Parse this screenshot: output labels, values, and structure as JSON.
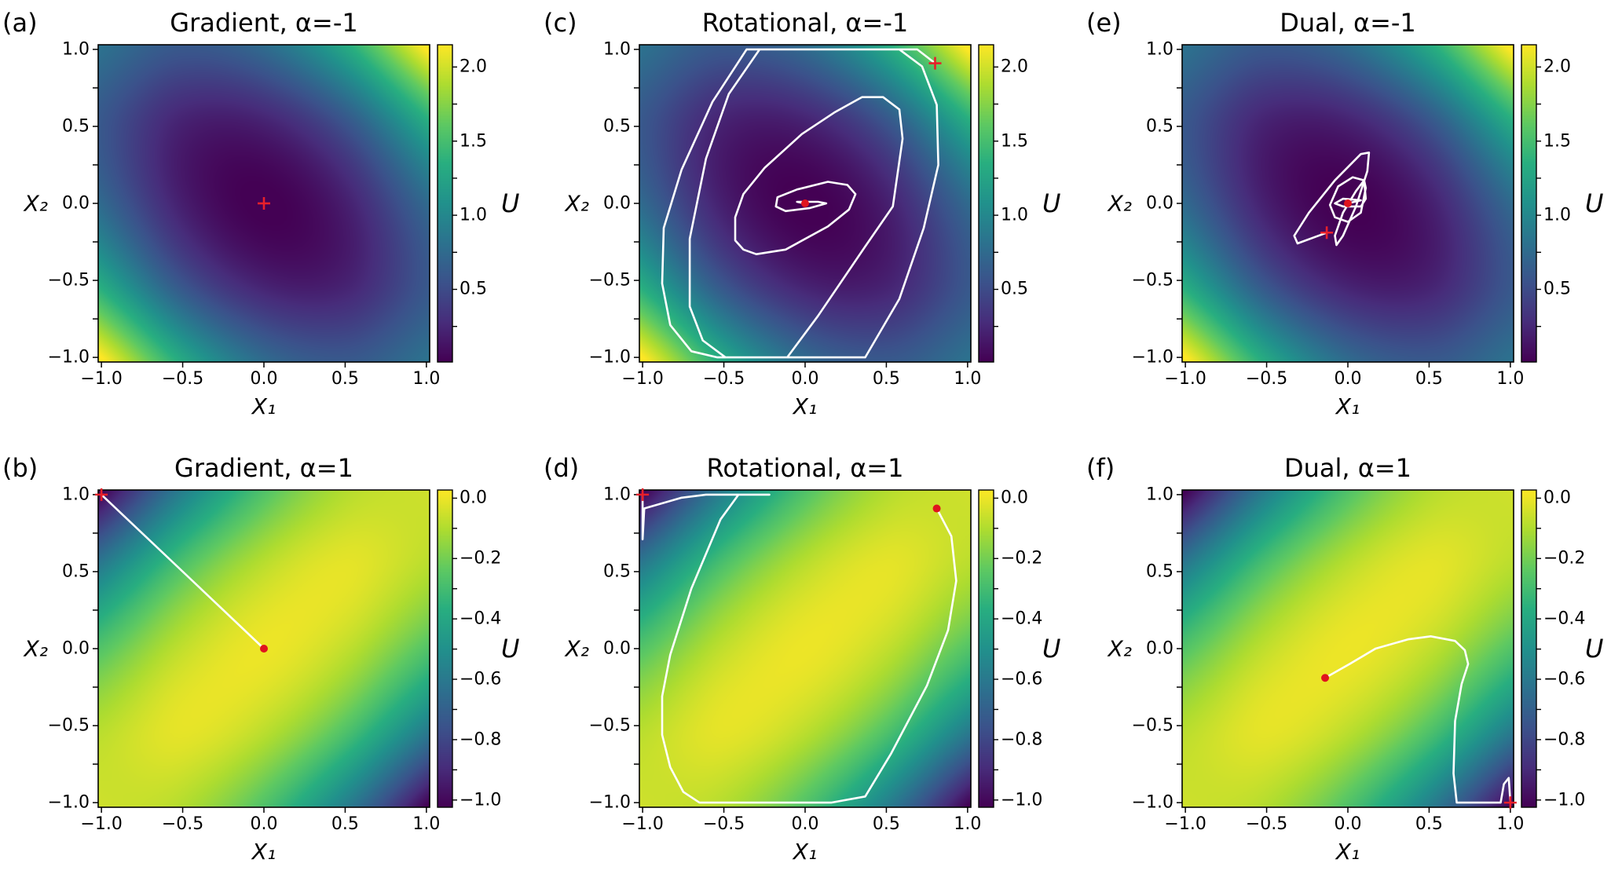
{
  "chart_data": [
    {
      "type": "heatmap",
      "panel_label": "(a)",
      "title": "Gradient, α=-1",
      "xlabel": "X₁",
      "ylabel": "X₂",
      "colorbar_label": "U",
      "colormap": "viridis",
      "xlim": [
        -1.02,
        1.02
      ],
      "ylim": [
        -1.03,
        1.03
      ],
      "xticks": [
        -1,
        -0.5,
        0,
        0.5,
        1
      ],
      "xtick_labels": [
        "−1.0",
        "−0.5",
        "0.0",
        "0.5",
        "1.0"
      ],
      "yticks": [
        -1,
        -0.5,
        0,
        0.5,
        1
      ],
      "ytick_labels": [
        "−1.0",
        "−0.5",
        "0.0",
        "0.5",
        "1.0"
      ],
      "clim": [
        0.01,
        2.15
      ],
      "colorbar_ticks": [
        0.5,
        1.0,
        1.5,
        2.0
      ],
      "colorbar_tick_labels": [
        "0.5",
        "1.0",
        "1.5",
        "2.0"
      ],
      "z_grid_x": [
        -1,
        -0.5,
        0,
        0.5,
        1
      ],
      "z_grid_y": [
        1,
        0.5,
        0,
        -0.5,
        -1
      ],
      "z_grid": [
        [
          0.8,
          0.59,
          0.74,
          1.27,
          2.16
        ],
        [
          0.59,
          0.2,
          0.19,
          0.54,
          1.27
        ],
        [
          0.74,
          0.19,
          0.0,
          0.19,
          0.74
        ],
        [
          1.27,
          0.54,
          0.19,
          0.2,
          0.59
        ],
        [
          2.16,
          1.27,
          0.74,
          0.59,
          0.8
        ]
      ],
      "trajectory": [],
      "start": [
        0,
        0
      ],
      "end": null
    },
    {
      "type": "heatmap",
      "panel_label": "(b)",
      "title": "Gradient, α=1",
      "xlabel": "X₁",
      "ylabel": "X₂",
      "colorbar_label": "U",
      "colormap": "viridis",
      "xlim": [
        -1.02,
        1.02
      ],
      "ylim": [
        -1.03,
        1.03
      ],
      "xticks": [
        -1,
        -0.5,
        0,
        0.5,
        1
      ],
      "xtick_labels": [
        "−1.0",
        "−0.5",
        "0.0",
        "0.5",
        "1.0"
      ],
      "yticks": [
        -1,
        -0.5,
        0,
        0.5,
        1
      ],
      "ytick_labels": [
        "−1.0",
        "−0.5",
        "0.0",
        "0.5",
        "1.0"
      ],
      "clim": [
        -1.024,
        0.027
      ],
      "colorbar_ticks": [
        -1.0,
        -0.8,
        -0.6,
        -0.4,
        -0.2,
        0.0
      ],
      "colorbar_tick_labels": [
        "−1.0",
        "−0.8",
        "−0.6",
        "−0.4",
        "−0.2",
        "0.0"
      ],
      "z_grid_x": [
        -1,
        -0.5,
        0,
        0.5,
        1
      ],
      "z_grid_y": [
        1,
        0.5,
        0,
        -0.5,
        -1
      ],
      "z_grid": [
        [
          -1.0,
          -0.56,
          -0.26,
          -0.09,
          -0.05
        ],
        [
          -0.56,
          -0.25,
          -0.07,
          -0.01,
          -0.09
        ],
        [
          -0.26,
          -0.07,
          0.0,
          -0.07,
          -0.26
        ],
        [
          -0.09,
          -0.01,
          -0.07,
          -0.25,
          -0.56
        ],
        [
          -0.05,
          -0.09,
          -0.26,
          -0.56,
          -1.0
        ]
      ],
      "trajectory": [
        [
          -1,
          1
        ],
        [
          -0.37,
          0.37
        ],
        [
          0,
          0
        ]
      ],
      "start": [
        -1,
        1
      ],
      "end": [
        0,
        0
      ]
    },
    {
      "type": "heatmap",
      "panel_label": "(c)",
      "title": "Rotational, α=-1",
      "xlabel": "X₁",
      "ylabel": "X₂",
      "colorbar_label": "U",
      "colormap": "viridis",
      "xlim": [
        -1.02,
        1.02
      ],
      "ylim": [
        -1.03,
        1.03
      ],
      "xticks": [
        -1,
        -0.5,
        0,
        0.5,
        1
      ],
      "xtick_labels": [
        "−1.0",
        "−0.5",
        "0.0",
        "0.5",
        "1.0"
      ],
      "yticks": [
        -1,
        -0.5,
        0,
        0.5,
        1
      ],
      "ytick_labels": [
        "−1.0",
        "−0.5",
        "0.0",
        "0.5",
        "1.0"
      ],
      "clim": [
        0.01,
        2.15
      ],
      "colorbar_ticks": [
        0.5,
        1.0,
        1.5,
        2.0
      ],
      "colorbar_tick_labels": [
        "0.5",
        "1.0",
        "1.5",
        "2.0"
      ],
      "z_grid_x": [
        -1,
        -0.5,
        0,
        0.5,
        1
      ],
      "z_grid_y": [
        1,
        0.5,
        0,
        -0.5,
        -1
      ],
      "z_grid": [
        [
          0.8,
          0.59,
          0.74,
          1.27,
          2.16
        ],
        [
          0.59,
          0.2,
          0.19,
          0.54,
          1.27
        ],
        [
          0.74,
          0.19,
          0.0,
          0.19,
          0.74
        ],
        [
          1.27,
          0.54,
          0.19,
          0.2,
          0.59
        ],
        [
          2.16,
          1.27,
          0.74,
          0.59,
          0.8
        ]
      ],
      "trajectory": [
        [
          0.8,
          0.91
        ],
        [
          0.69,
          1.0
        ],
        [
          -0.36,
          1.0
        ],
        [
          -0.57,
          0.66
        ],
        [
          -0.76,
          0.22
        ],
        [
          -0.87,
          -0.16
        ],
        [
          -0.88,
          -0.52
        ],
        [
          -0.83,
          -0.79
        ],
        [
          -0.7,
          -0.96
        ],
        [
          -0.54,
          -1.0
        ],
        [
          0.37,
          -1.0
        ],
        [
          0.58,
          -0.62
        ],
        [
          0.73,
          -0.16
        ],
        [
          0.82,
          0.25
        ],
        [
          0.81,
          0.64
        ],
        [
          0.72,
          0.89
        ],
        [
          0.58,
          1.0
        ],
        [
          -0.28,
          1.0
        ],
        [
          -0.47,
          0.71
        ],
        [
          -0.61,
          0.29
        ],
        [
          -0.71,
          -0.23
        ],
        [
          -0.71,
          -0.67
        ],
        [
          -0.63,
          -0.89
        ],
        [
          -0.49,
          -1.0
        ],
        [
          -0.11,
          -1.0
        ],
        [
          0.08,
          -0.73
        ],
        [
          0.37,
          -0.28
        ],
        [
          0.54,
          -0.02
        ],
        [
          0.6,
          0.42
        ],
        [
          0.58,
          0.61
        ],
        [
          0.48,
          0.69
        ],
        [
          0.35,
          0.69
        ],
        [
          0.18,
          0.59
        ],
        [
          -0.02,
          0.45
        ],
        [
          -0.25,
          0.23
        ],
        [
          -0.38,
          0.06
        ],
        [
          -0.43,
          -0.09
        ],
        [
          -0.43,
          -0.24
        ],
        [
          -0.38,
          -0.3
        ],
        [
          -0.3,
          -0.33
        ],
        [
          -0.12,
          -0.3
        ],
        [
          0.14,
          -0.15
        ],
        [
          0.27,
          -0.04
        ],
        [
          0.31,
          0.06
        ],
        [
          0.26,
          0.12
        ],
        [
          0.14,
          0.14
        ],
        [
          -0.05,
          0.09
        ],
        [
          -0.17,
          0.04
        ],
        [
          -0.18,
          -0.02
        ],
        [
          -0.12,
          -0.05
        ],
        [
          0.03,
          -0.03
        ],
        [
          0.13,
          0.0
        ],
        [
          0.08,
          0.01
        ],
        [
          -0.05,
          0.01
        ],
        [
          0,
          0
        ]
      ],
      "start": [
        0.8,
        0.91
      ],
      "end": [
        0,
        0
      ]
    },
    {
      "type": "heatmap",
      "panel_label": "(d)",
      "title": "Rotational, α=1",
      "xlabel": "X₁",
      "ylabel": "X₂",
      "colorbar_label": "U",
      "colormap": "viridis",
      "xlim": [
        -1.02,
        1.02
      ],
      "ylim": [
        -1.03,
        1.03
      ],
      "xticks": [
        -1,
        -0.5,
        0,
        0.5,
        1
      ],
      "xtick_labels": [
        "−1.0",
        "−0.5",
        "0.0",
        "0.5",
        "1.0"
      ],
      "yticks": [
        -1,
        -0.5,
        0,
        0.5,
        1
      ],
      "ytick_labels": [
        "−1.0",
        "−0.5",
        "0.0",
        "0.5",
        "1.0"
      ],
      "clim": [
        -1.024,
        0.027
      ],
      "colorbar_ticks": [
        -1.0,
        -0.8,
        -0.6,
        -0.4,
        -0.2,
        0.0
      ],
      "colorbar_tick_labels": [
        "−1.0",
        "−0.8",
        "−0.6",
        "−0.4",
        "−0.2",
        "0.0"
      ],
      "z_grid_x": [
        -1,
        -0.5,
        0,
        0.5,
        1
      ],
      "z_grid_y": [
        1,
        0.5,
        0,
        -0.5,
        -1
      ],
      "z_grid": [
        [
          -1.0,
          -0.56,
          -0.26,
          -0.09,
          -0.05
        ],
        [
          -0.56,
          -0.25,
          -0.07,
          -0.01,
          -0.09
        ],
        [
          -0.26,
          -0.07,
          0.0,
          -0.07,
          -0.26
        ],
        [
          -0.09,
          -0.01,
          -0.07,
          -0.25,
          -0.56
        ],
        [
          -0.05,
          -0.09,
          -0.26,
          -0.56,
          -1.0
        ]
      ],
      "trajectory": [
        [
          -1,
          1
        ],
        [
          -1.0,
          0.71
        ],
        [
          -0.99,
          0.91
        ],
        [
          -0.76,
          0.98
        ],
        [
          -0.61,
          1.0
        ],
        [
          -0.22,
          1.0
        ],
        [
          -0.41,
          1.0
        ],
        [
          -0.52,
          0.84
        ],
        [
          -0.7,
          0.39
        ],
        [
          -0.83,
          -0.04
        ],
        [
          -0.88,
          -0.31
        ],
        [
          -0.88,
          -0.56
        ],
        [
          -0.83,
          -0.77
        ],
        [
          -0.75,
          -0.93
        ],
        [
          -0.65,
          -1.0
        ],
        [
          0.16,
          -1.0
        ],
        [
          0.37,
          -0.96
        ],
        [
          0.53,
          -0.68
        ],
        [
          0.75,
          -0.24
        ],
        [
          0.88,
          0.12
        ],
        [
          0.93,
          0.44
        ],
        [
          0.9,
          0.73
        ],
        [
          0.81,
          0.91
        ]
      ],
      "start": [
        -1,
        1
      ],
      "end": [
        0.81,
        0.91
      ]
    },
    {
      "type": "heatmap",
      "panel_label": "(e)",
      "title": "Dual, α=-1",
      "xlabel": "X₁",
      "ylabel": "X₂",
      "colorbar_label": "U",
      "colormap": "viridis",
      "xlim": [
        -1.02,
        1.02
      ],
      "ylim": [
        -1.03,
        1.03
      ],
      "xticks": [
        -1,
        -0.5,
        0,
        0.5,
        1
      ],
      "xtick_labels": [
        "−1.0",
        "−0.5",
        "0.0",
        "0.5",
        "1.0"
      ],
      "yticks": [
        -1,
        -0.5,
        0,
        0.5,
        1
      ],
      "ytick_labels": [
        "−1.0",
        "−0.5",
        "0.0",
        "0.5",
        "1.0"
      ],
      "clim": [
        0.01,
        2.15
      ],
      "colorbar_ticks": [
        0.5,
        1.0,
        1.5,
        2.0
      ],
      "colorbar_tick_labels": [
        "0.5",
        "1.0",
        "1.5",
        "2.0"
      ],
      "z_grid_x": [
        -1,
        -0.5,
        0,
        0.5,
        1
      ],
      "z_grid_y": [
        1,
        0.5,
        0,
        -0.5,
        -1
      ],
      "z_grid": [
        [
          0.8,
          0.59,
          0.74,
          1.27,
          2.16
        ],
        [
          0.59,
          0.2,
          0.19,
          0.54,
          1.27
        ],
        [
          0.74,
          0.19,
          0.0,
          0.19,
          0.74
        ],
        [
          1.27,
          0.54,
          0.19,
          0.2,
          0.59
        ],
        [
          2.16,
          1.27,
          0.74,
          0.59,
          0.8
        ]
      ],
      "trajectory": [
        [
          -0.13,
          -0.19
        ],
        [
          -0.31,
          -0.26
        ],
        [
          -0.33,
          -0.21
        ],
        [
          -0.24,
          -0.06
        ],
        [
          -0.08,
          0.15
        ],
        [
          0.08,
          0.32
        ],
        [
          0.13,
          0.33
        ],
        [
          0.12,
          0.21
        ],
        [
          0.05,
          -0.02
        ],
        [
          -0.03,
          -0.21
        ],
        [
          -0.07,
          -0.27
        ],
        [
          -0.08,
          -0.21
        ],
        [
          -0.03,
          -0.06
        ],
        [
          0.05,
          0.08
        ],
        [
          0.1,
          0.15
        ],
        [
          0.11,
          0.1
        ],
        [
          0.08,
          -0.06
        ],
        [
          0.0,
          -0.12
        ],
        [
          -0.08,
          -0.09
        ],
        [
          -0.11,
          -0.01
        ],
        [
          -0.06,
          0.11
        ],
        [
          0.03,
          0.17
        ],
        [
          0.1,
          0.15
        ],
        [
          0.11,
          0.03
        ],
        [
          0.08,
          -0.02
        ],
        [
          -0.03,
          -0.02
        ],
        [
          -0.08,
          0.0
        ],
        [
          -0.03,
          0.03
        ],
        [
          0.08,
          0.02
        ],
        [
          0,
          0
        ]
      ],
      "start": [
        -0.13,
        -0.19
      ],
      "end": [
        0,
        0
      ]
    },
    {
      "type": "heatmap",
      "panel_label": "(f)",
      "title": "Dual, α=1",
      "xlabel": "X₁",
      "ylabel": "X₂",
      "colorbar_label": "U",
      "colormap": "viridis",
      "xlim": [
        -1.02,
        1.02
      ],
      "ylim": [
        -1.03,
        1.03
      ],
      "xticks": [
        -1,
        -0.5,
        0,
        0.5,
        1
      ],
      "xtick_labels": [
        "−1.0",
        "−0.5",
        "0.0",
        "0.5",
        "1.0"
      ],
      "yticks": [
        -1,
        -0.5,
        0,
        0.5,
        1
      ],
      "ytick_labels": [
        "−1.0",
        "−0.5",
        "0.0",
        "0.5",
        "1.0"
      ],
      "clim": [
        -1.024,
        0.027
      ],
      "colorbar_ticks": [
        -1.0,
        -0.8,
        -0.6,
        -0.4,
        -0.2,
        0.0
      ],
      "colorbar_tick_labels": [
        "−1.0",
        "−0.8",
        "−0.6",
        "−0.4",
        "−0.2",
        "0.0"
      ],
      "z_grid_x": [
        -1,
        -0.5,
        0,
        0.5,
        1
      ],
      "z_grid_y": [
        1,
        0.5,
        0,
        -0.5,
        -1
      ],
      "z_grid": [
        [
          -1.0,
          -0.56,
          -0.26,
          -0.09,
          -0.05
        ],
        [
          -0.56,
          -0.25,
          -0.07,
          -0.01,
          -0.09
        ],
        [
          -0.26,
          -0.07,
          0.0,
          -0.07,
          -0.26
        ],
        [
          -0.09,
          -0.01,
          -0.07,
          -0.25,
          -0.56
        ],
        [
          -0.05,
          -0.09,
          -0.26,
          -0.56,
          -1.0
        ]
      ],
      "trajectory": [
        [
          1.0,
          -1.0
        ],
        [
          0.99,
          -0.84
        ],
        [
          0.96,
          -0.88
        ],
        [
          0.94,
          -1.0
        ],
        [
          0.67,
          -1.0
        ],
        [
          0.65,
          -0.81
        ],
        [
          0.66,
          -0.47
        ],
        [
          0.7,
          -0.23
        ],
        [
          0.74,
          -0.1
        ],
        [
          0.72,
          -0.01
        ],
        [
          0.66,
          0.05
        ],
        [
          0.51,
          0.08
        ],
        [
          0.37,
          0.06
        ],
        [
          0.17,
          0.0
        ],
        [
          0.01,
          -0.1
        ],
        [
          -0.14,
          -0.19
        ]
      ],
      "start": [
        1.0,
        -1.0
      ],
      "end": [
        -0.14,
        -0.19
      ]
    }
  ],
  "colors": {
    "trajectory": "#ffffff",
    "start_marker": "#e8202a",
    "end_marker": "#e0141e",
    "viridis": [
      "#440154",
      "#472d7b",
      "#3b528b",
      "#2c728e",
      "#21918c",
      "#28ae80",
      "#5ec962",
      "#addc30",
      "#fde725"
    ]
  }
}
